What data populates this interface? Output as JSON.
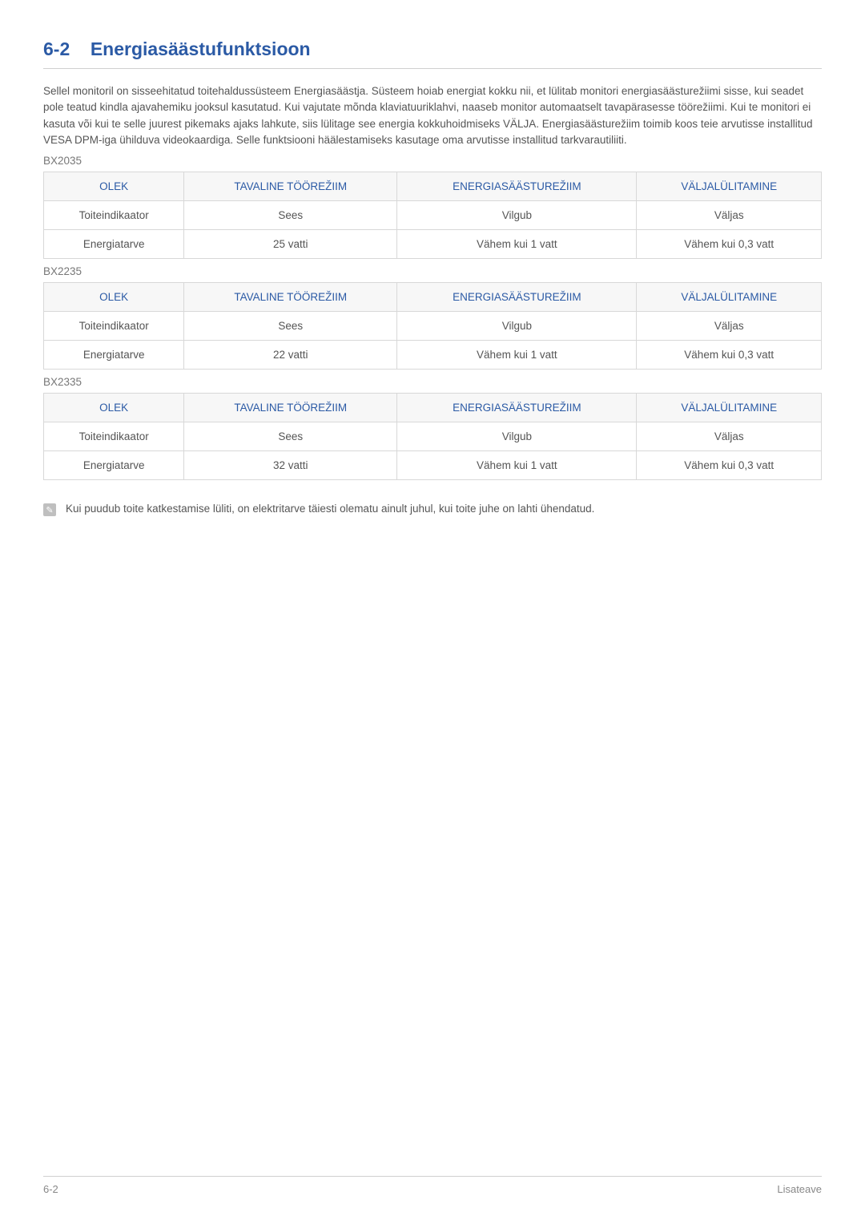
{
  "section": {
    "number": "6-2",
    "title": "Energiasäästufunktsioon"
  },
  "intro": "Sellel monitoril on sisseehitatud toitehaldussüsteem Energiasäästja. Süsteem hoiab energiat kokku nii, et lülitab monitori energiasäästurežiimi sisse, kui seadet pole teatud kindla ajavahemiku jooksul kasutatud. Kui vajutate mõnda klaviatuuriklahvi, naaseb monitor automaatselt tavapärasesse töörežiimi. Kui te monitori ei kasuta või kui te selle juurest pikemaks ajaks lahkute, siis lülitage see energia kokkuhoidmiseks VÄLJA. Energiasäästurežiim toimib koos teie arvutisse installitud VESA DPM-iga ühilduva videokaardiga. Selle funktsiooni häälestamiseks kasutage oma arvutisse installitud tarkvarautiliiti.",
  "headers": {
    "state": "OLEK",
    "normal": "TAVALINE TÖÖREŽIIM",
    "saving": "ENERGIASÄÄSTUREŽIIM",
    "off": "VÄLJALÜLITAMINE"
  },
  "rowLabels": {
    "indicator": "Toiteindikaator",
    "consumption": "Energiatarve"
  },
  "commonValues": {
    "indicator_on": "Sees",
    "indicator_blink": "Vilgub",
    "indicator_off": "Väljas",
    "less1": "Vähem kui 1 vatt",
    "less03": "Vähem kui 0,3 vatt"
  },
  "models": [
    {
      "name": "BX2035",
      "power": "25 vatti"
    },
    {
      "name": "BX2235",
      "power": "22 vatti"
    },
    {
      "name": "BX2335",
      "power": "32 vatti"
    }
  ],
  "note": "Kui puudub toite katkestamise lüliti, on elektritarve täiesti olematu ainult juhul, kui toite juhe on lahti ühendatud.",
  "footer": {
    "left": "6-2",
    "right": "Lisateave"
  },
  "style": {
    "accent_color": "#2b5aa5",
    "border_color": "#d8d8d8",
    "header_bg": "#f7f7f7",
    "text_color": "#555555",
    "muted_color": "#888888",
    "note_icon_bg": "#bfbfbf"
  }
}
